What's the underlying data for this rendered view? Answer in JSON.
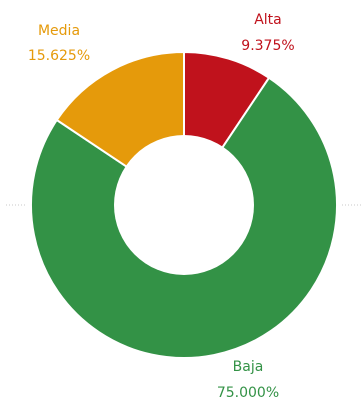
{
  "chart_data": {
    "type": "pie",
    "donut": true,
    "categories": [
      "Alta",
      "Media",
      "Baja"
    ],
    "values": [
      9.375,
      15.625,
      75.0
    ],
    "value_labels": [
      "9.375%",
      "15.625%",
      "75.000%"
    ],
    "colors": [
      "#C0121C",
      "#E59A0B",
      "#339246"
    ],
    "legend": "none"
  }
}
